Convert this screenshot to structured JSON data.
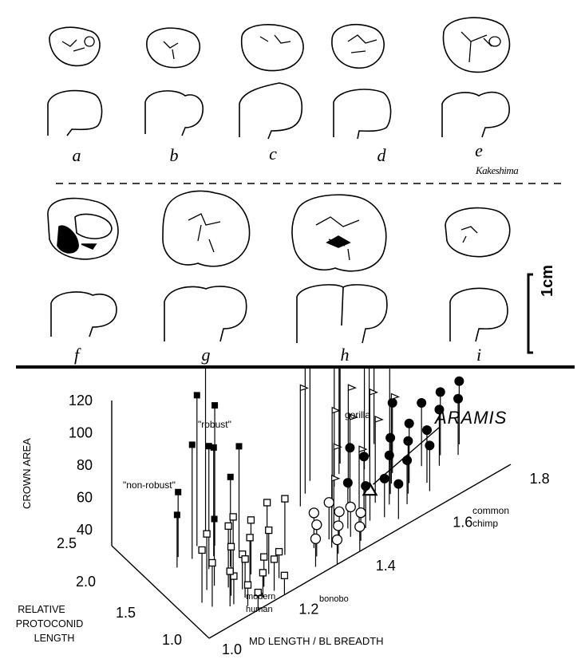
{
  "figure": {
    "specimen_labels_top": [
      "a",
      "b",
      "c",
      "d",
      "e"
    ],
    "specimen_labels_bottom": [
      "f",
      "g",
      "h",
      "i"
    ],
    "scale_bar_label": "1cm",
    "signature": "Kakeshima"
  },
  "chart_data": {
    "type": "scatter",
    "dimensions": 3,
    "zlabel": "CROWN AREA",
    "z_ticks": [
      "120",
      "100",
      "80",
      "60",
      "40"
    ],
    "ylabel": "RELATIVE PROTOCONID LENGTH",
    "ylabel_lines": [
      "RELATIVE",
      "PROTOCONID",
      "LENGTH"
    ],
    "y_ticks": [
      "2.5",
      "2.0",
      "1.5",
      "1.0"
    ],
    "xlabel": "MD LENGTH / BL BREADTH",
    "x_ticks": [
      "1.0",
      "1.2",
      "1.4",
      "1.6",
      "1.8"
    ],
    "callout": "ARAMIS",
    "group_labels": [
      {
        "text": "\"robust\""
      },
      {
        "text": "\"non-robust\""
      },
      {
        "text": "gorilla"
      },
      {
        "text": "common"
      },
      {
        "text": "chimp"
      },
      {
        "text": "modern"
      },
      {
        "text": "human"
      },
      {
        "text": "bonobo"
      }
    ],
    "series": [
      {
        "name": "\"robust\"",
        "marker": "filled-square",
        "points": [
          [
            1.09,
            2.0,
            67
          ],
          [
            1.11,
            1.9,
            95
          ],
          [
            1.12,
            1.7,
            100
          ],
          [
            1.14,
            2.0,
            116
          ],
          [
            1.15,
            1.8,
            92
          ],
          [
            1.17,
            1.9,
            110
          ],
          [
            1.18,
            2.1,
            128
          ],
          [
            1.16,
            1.6,
            81
          ],
          [
            1.2,
            1.7,
            90
          ],
          [
            1.1,
            1.5,
            68
          ],
          [
            1.07,
            1.9,
            60
          ]
        ]
      },
      {
        "name": "\"non-robust\"",
        "marker": "open-square",
        "points": [
          [
            1.05,
            1.4,
            60
          ],
          [
            1.06,
            1.3,
            55
          ],
          [
            1.08,
            1.5,
            62
          ],
          [
            1.09,
            1.2,
            50
          ],
          [
            1.11,
            1.3,
            58
          ],
          [
            1.12,
            1.4,
            65
          ],
          [
            1.13,
            1.2,
            52
          ],
          [
            1.15,
            1.5,
            63
          ],
          [
            1.16,
            1.3,
            57
          ],
          [
            1.18,
            1.4,
            61
          ],
          [
            1.21,
            1.3,
            55
          ],
          [
            1.24,
            1.5,
            60
          ],
          [
            1.27,
            1.4,
            62
          ],
          [
            1.19,
            1.1,
            48
          ]
        ]
      },
      {
        "name": "modern human",
        "marker": "open-square",
        "points": [
          [
            1.1,
            1.2,
            46
          ],
          [
            1.12,
            1.1,
            42
          ],
          [
            1.14,
            1.3,
            50
          ],
          [
            1.16,
            1.1,
            44
          ],
          [
            1.18,
            1.2,
            47
          ],
          [
            1.2,
            1.0,
            41
          ],
          [
            1.22,
            1.2,
            45
          ],
          [
            1.13,
            1.0,
            40
          ]
        ]
      },
      {
        "name": "gorilla",
        "marker": "flag",
        "points": [
          [
            1.38,
            1.8,
            96
          ],
          [
            1.41,
            1.9,
            102
          ],
          [
            1.44,
            2.0,
            98
          ],
          [
            1.47,
            1.8,
            100
          ],
          [
            1.5,
            1.9,
            95
          ],
          [
            1.52,
            2.0,
            103
          ],
          [
            1.55,
            1.8,
            97
          ],
          [
            1.58,
            1.9,
            94
          ],
          [
            1.61,
            2.0,
            99
          ],
          [
            1.43,
            1.6,
            84
          ],
          [
            1.46,
            1.5,
            80
          ],
          [
            1.49,
            1.7,
            86
          ],
          [
            1.53,
            1.6,
            82
          ],
          [
            1.57,
            1.5,
            78
          ],
          [
            1.6,
            1.7,
            88
          ],
          [
            1.4,
            1.4,
            74
          ],
          [
            1.45,
            1.3,
            70
          ],
          [
            1.51,
            1.4,
            76
          ],
          [
            1.36,
            1.2,
            68
          ]
        ]
      },
      {
        "name": "common chimp",
        "marker": "filled-circle",
        "points": [
          [
            1.42,
            1.3,
            56
          ],
          [
            1.45,
            1.2,
            54
          ],
          [
            1.48,
            1.4,
            60
          ],
          [
            1.5,
            1.2,
            52
          ],
          [
            1.53,
            1.3,
            58
          ],
          [
            1.55,
            1.4,
            62
          ],
          [
            1.58,
            1.3,
            60
          ],
          [
            1.6,
            1.4,
            64
          ],
          [
            1.63,
            1.3,
            60
          ],
          [
            1.65,
            1.5,
            66
          ],
          [
            1.68,
            1.4,
            62
          ],
          [
            1.7,
            1.5,
            66
          ],
          [
            1.73,
            1.4,
            62
          ],
          [
            1.75,
            1.5,
            66
          ],
          [
            1.52,
            1.1,
            50
          ],
          [
            1.56,
            1.2,
            55
          ],
          [
            1.62,
            1.2,
            56
          ],
          [
            1.46,
            1.5,
            64
          ],
          [
            1.59,
            1.6,
            70
          ]
        ]
      },
      {
        "name": "bonobo",
        "marker": "open-circle",
        "points": [
          [
            1.3,
            1.1,
            46
          ],
          [
            1.32,
            1.2,
            48
          ],
          [
            1.34,
            1.0,
            44
          ],
          [
            1.36,
            1.1,
            46
          ],
          [
            1.38,
            1.2,
            48
          ],
          [
            1.4,
            1.0,
            44
          ],
          [
            1.42,
            1.1,
            46
          ],
          [
            1.33,
            1.3,
            50
          ],
          [
            1.37,
            1.3,
            51
          ],
          [
            1.41,
            1.2,
            47
          ]
        ]
      },
      {
        "name": "ARAMIS",
        "marker": "open-triangle",
        "points": [
          [
            1.47,
            1.25,
            47
          ]
        ]
      }
    ],
    "grid": false,
    "legend": "none"
  }
}
